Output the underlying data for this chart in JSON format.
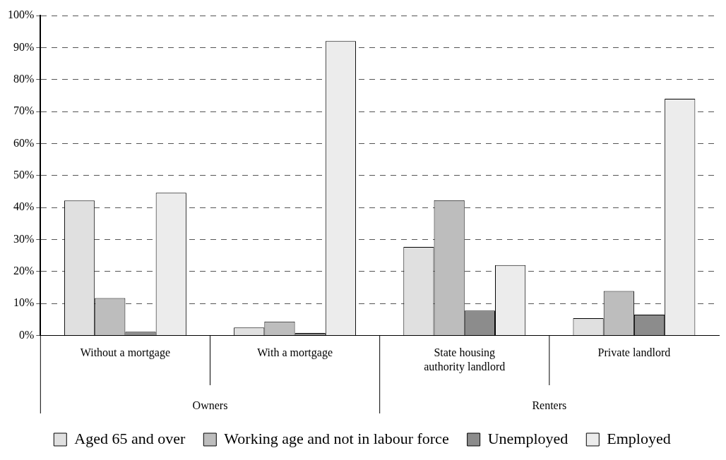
{
  "chart_data": {
    "type": "bar",
    "categories": [
      "Without a mortgage",
      "With a mortgage",
      "State housing authority landlord",
      "Private landlord"
    ],
    "series": [
      {
        "name": "Aged 65 and over",
        "color": "#e0e0e0",
        "values": [
          42.2,
          2.5,
          27.7,
          5.4
        ]
      },
      {
        "name": "Working age and not in labour force",
        "color": "#bdbdbd",
        "values": [
          11.7,
          4.4,
          42.3,
          13.9
        ]
      },
      {
        "name": "Unemployed",
        "color": "#8c8c8c",
        "values": [
          1.2,
          0.8,
          7.8,
          6.5
        ]
      },
      {
        "name": "Employed",
        "color": "#ececec",
        "values": [
          44.6,
          92,
          22.0,
          74.0
        ]
      }
    ],
    "ylim": [
      0,
      100
    ],
    "yticks": [
      {
        "value": 0,
        "label": "0%"
      },
      {
        "value": 10,
        "label": "10%"
      },
      {
        "value": 20,
        "label": "20%"
      },
      {
        "value": 30,
        "label": "30%"
      },
      {
        "value": 40,
        "label": "40%"
      },
      {
        "value": 50,
        "label": "50%"
      },
      {
        "value": 60,
        "label": "60%"
      },
      {
        "value": 70,
        "label": "70%"
      },
      {
        "value": 80,
        "label": "80%"
      },
      {
        "value": 90,
        "label": "90%"
      },
      {
        "value": 100,
        "label": "100%"
      }
    ],
    "annotations": [
      "Owners",
      "Renters"
    ],
    "grid": "y",
    "legend": "bottom"
  }
}
